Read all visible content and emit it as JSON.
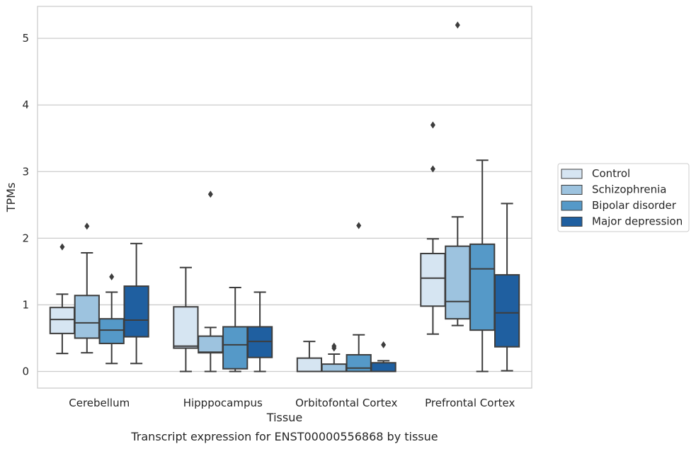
{
  "chart_data": {
    "type": "box",
    "title": "",
    "caption": "Transcript expression for ENST00000556868 by tissue",
    "xlabel": "Tissue",
    "ylabel": "TPMs",
    "ylim": [
      -0.25,
      5.48
    ],
    "yticks": [
      0,
      1,
      2,
      3,
      4,
      5
    ],
    "grid": "horizontal",
    "legend_position": "outside-right",
    "categories": [
      "Cerebellum",
      "Hipppocampus",
      "Orbitofontal Cortex",
      "Prefrontal Cortex"
    ],
    "series": [
      {
        "name": "Control",
        "color": "#d6e5f2",
        "boxes": [
          {
            "whislo": 0.27,
            "q1": 0.57,
            "med": 0.78,
            "q3": 0.96,
            "whishi": 1.16,
            "fliers": [
              1.87
            ]
          },
          {
            "whislo": 0.0,
            "q1": 0.35,
            "med": 0.38,
            "q3": 0.97,
            "whishi": 1.56,
            "fliers": []
          },
          {
            "whislo": 0.0,
            "q1": 0.0,
            "med": 0.0,
            "q3": 0.2,
            "whishi": 0.45,
            "fliers": []
          },
          {
            "whislo": 0.56,
            "q1": 0.98,
            "med": 1.4,
            "q3": 1.77,
            "whishi": 1.99,
            "fliers": [
              3.04,
              3.7
            ]
          }
        ]
      },
      {
        "name": "Schizophrenia",
        "color": "#9dc3df",
        "boxes": [
          {
            "whislo": 0.28,
            "q1": 0.5,
            "med": 0.73,
            "q3": 1.14,
            "whishi": 1.78,
            "fliers": [
              2.18
            ]
          },
          {
            "whislo": 0.0,
            "q1": 0.28,
            "med": 0.29,
            "q3": 0.53,
            "whishi": 0.66,
            "fliers": [
              2.66
            ]
          },
          {
            "whislo": 0.0,
            "q1": 0.0,
            "med": 0.0,
            "q3": 0.11,
            "whishi": 0.26,
            "fliers": [
              0.35,
              0.38
            ]
          },
          {
            "whislo": 0.69,
            "q1": 0.79,
            "med": 1.05,
            "q3": 1.88,
            "whishi": 2.32,
            "fliers": [
              5.2
            ]
          }
        ]
      },
      {
        "name": "Bipolar disorder",
        "color": "#5599c8",
        "boxes": [
          {
            "whislo": 0.12,
            "q1": 0.42,
            "med": 0.62,
            "q3": 0.79,
            "whishi": 1.19,
            "fliers": [
              1.42
            ]
          },
          {
            "whislo": 0.0,
            "q1": 0.04,
            "med": 0.4,
            "q3": 0.67,
            "whishi": 1.26,
            "fliers": []
          },
          {
            "whislo": 0.0,
            "q1": 0.0,
            "med": 0.05,
            "q3": 0.25,
            "whishi": 0.55,
            "fliers": [
              2.19
            ]
          },
          {
            "whislo": 0.0,
            "q1": 0.62,
            "med": 1.54,
            "q3": 1.91,
            "whishi": 3.17,
            "fliers": []
          }
        ]
      },
      {
        "name": "Major depression",
        "color": "#1f5fa0",
        "boxes": [
          {
            "whislo": 0.12,
            "q1": 0.52,
            "med": 0.77,
            "q3": 1.28,
            "whishi": 1.92,
            "fliers": []
          },
          {
            "whislo": 0.0,
            "q1": 0.21,
            "med": 0.45,
            "q3": 0.67,
            "whishi": 1.19,
            "fliers": []
          },
          {
            "whislo": 0.0,
            "q1": 0.0,
            "med": 0.0,
            "q3": 0.13,
            "whishi": 0.16,
            "fliers": [
              0.4
            ]
          },
          {
            "whislo": 0.01,
            "q1": 0.37,
            "med": 0.88,
            "q3": 1.45,
            "whishi": 2.52,
            "fliers": []
          }
        ]
      }
    ]
  }
}
